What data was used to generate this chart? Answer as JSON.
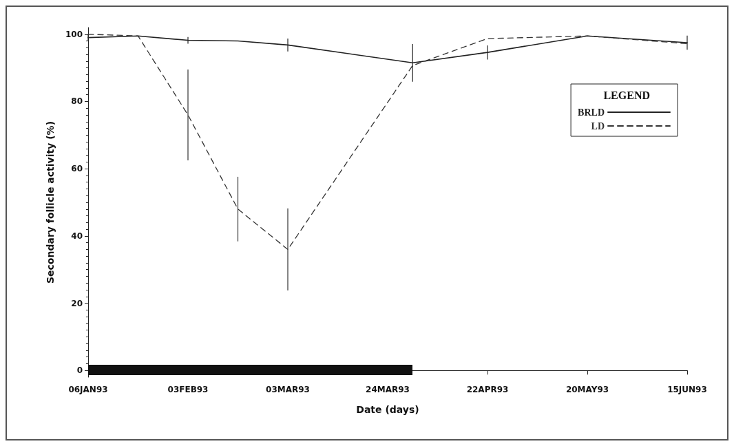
{
  "chart_data": {
    "type": "line",
    "xlabel": "Date (days)",
    "ylabel": "Secondary follicle activity (%)",
    "legend_title": "LEGEND",
    "categories": [
      "06JAN93",
      null,
      null,
      null,
      "03FEB93",
      null,
      null,
      null,
      "03MAR93",
      null,
      null,
      null,
      "24MAR93",
      null,
      null,
      null,
      "22APR93",
      null,
      null,
      null,
      "20MAY93",
      null,
      null,
      null,
      "15JUN93"
    ],
    "series": [
      {
        "name": "BRLD",
        "color": "#222222",
        "line_style": "solid",
        "values": [
          99,
          null,
          99.5,
          null,
          98.2,
          null,
          98,
          null,
          96.8,
          null,
          null,
          null,
          null,
          91.5,
          null,
          null,
          94.6,
          null,
          null,
          null,
          99.5,
          null,
          null,
          null,
          97.5
        ],
        "errors": [
          1,
          null,
          null,
          null,
          1,
          null,
          null,
          null,
          1.9,
          null,
          null,
          null,
          null,
          5.6,
          null,
          null,
          2.1,
          null,
          null,
          null,
          null,
          null,
          null,
          null,
          2.1
        ]
      },
      {
        "name": "LD",
        "color": "#333333",
        "line_style": "dashed",
        "values": [
          100,
          null,
          99.5,
          null,
          76,
          null,
          48,
          null,
          36,
          null,
          null,
          null,
          null,
          90.7,
          null,
          null,
          98.7,
          null,
          null,
          null,
          99.5,
          null,
          null,
          null,
          97.2
        ],
        "errors": [
          null,
          null,
          null,
          null,
          13.5,
          null,
          9.6,
          null,
          12.2,
          null,
          null,
          null,
          null,
          null,
          null,
          null,
          null,
          null,
          null,
          null,
          null,
          null,
          null,
          null,
          null
        ]
      }
    ],
    "ylim": [
      -2,
      102
    ],
    "yticks": [
      0,
      20,
      40,
      60,
      80,
      100
    ],
    "legend": "top right",
    "marker": "none",
    "grid": false
  }
}
